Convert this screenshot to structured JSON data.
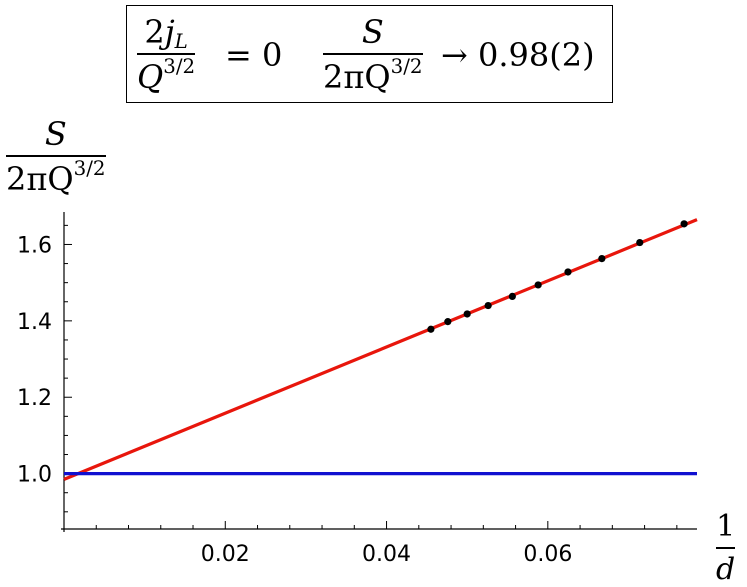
{
  "title": {
    "eq1": {
      "num_coef": "2",
      "num_sym": "j",
      "num_sub": "L",
      "den_sym": "Q",
      "den_sup": "3/2",
      "rhs": "= 0"
    },
    "eq2": {
      "num": "S",
      "den_coef": "2πQ",
      "den_sup": "3/2",
      "rhs": "→ 0.98(2)"
    }
  },
  "ylabel": {
    "num": "S",
    "den_coef": "2πQ",
    "den_sup": "3/2"
  },
  "xlabel": {
    "num": "1",
    "den": "d"
  },
  "chart_data": {
    "type": "scatter",
    "x_range": [
      0,
      0.0785
    ],
    "y_range": [
      0.855,
      1.685
    ],
    "x_ticks": [
      0.02,
      0.04,
      0.06
    ],
    "x_tick_labels": [
      "0.02",
      "0.04",
      "0.06"
    ],
    "y_ticks": [
      1.0,
      1.2,
      1.4,
      1.6
    ],
    "y_tick_labels": [
      "1.0",
      "1.2",
      "1.4",
      "1.6"
    ],
    "grid": false,
    "series": [
      {
        "type": "scatter",
        "color": "#000000",
        "x": [
          0.0455,
          0.0476,
          0.05,
          0.0526,
          0.0556,
          0.0588,
          0.0625,
          0.0667,
          0.0714,
          0.0769
        ],
        "y": [
          1.378,
          1.398,
          1.418,
          1.44,
          1.464,
          1.494,
          1.528,
          1.563,
          1.605,
          1.654
        ]
      },
      {
        "type": "line",
        "color": "#e8160c",
        "x": [
          0,
          0.0785
        ],
        "y": [
          0.985,
          1.665
        ]
      },
      {
        "type": "line",
        "color": "#1010d0",
        "x": [
          0,
          0.0785
        ],
        "y": [
          1.0,
          1.0
        ]
      }
    ]
  }
}
